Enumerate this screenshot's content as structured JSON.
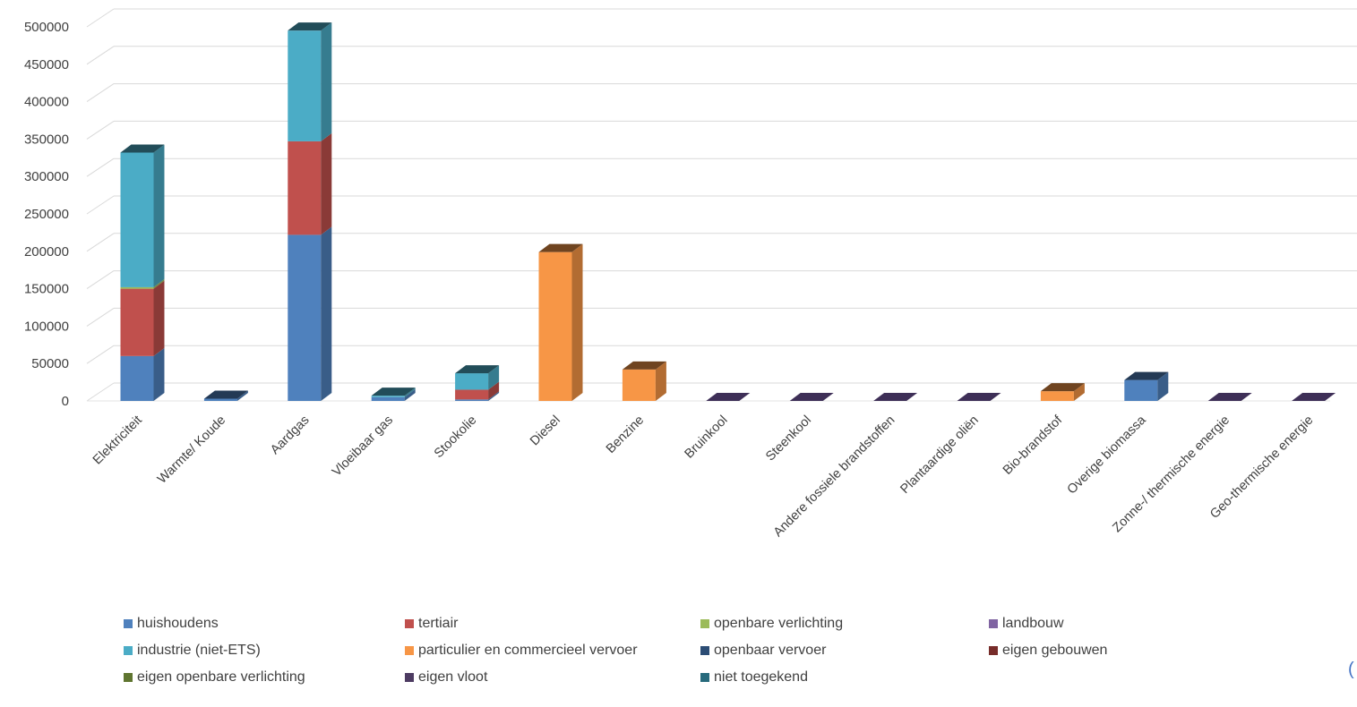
{
  "chart_data": {
    "type": "bar",
    "stacked": true,
    "style": "3d-column",
    "categories": [
      "Elektriciteit",
      "Warmte/ Koude",
      "Aardgas",
      "Vloeibaar gas",
      "Stookolie",
      "Diesel",
      "Benzine",
      "Bruinkool",
      "Steenkool",
      "Andere fossiele brandstoffen",
      "Plantaardige oliën",
      "Bio-brandstof",
      "Overige biomassa",
      "Zonne-/ thermische energie",
      "Geo-thermische energie"
    ],
    "y_ticks": [
      "0",
      "50000",
      "100000",
      "150000",
      "200000",
      "250000",
      "300000",
      "350000",
      "400000",
      "450000",
      "500000"
    ],
    "ylim": [
      0,
      520000
    ],
    "grid": true,
    "legend_position": "bottom",
    "series": [
      {
        "name": "huishoudens",
        "color": "#4F81BD",
        "values": [
          60000,
          3000,
          222000,
          5000,
          2000,
          0,
          0,
          0,
          0,
          0,
          0,
          0,
          28000,
          0,
          0
        ]
      },
      {
        "name": "tertiair",
        "color": "#C0504D",
        "values": [
          90000,
          0,
          125000,
          0,
          13000,
          0,
          0,
          0,
          0,
          0,
          0,
          0,
          0,
          0,
          0
        ]
      },
      {
        "name": "openbare verlichting",
        "color": "#9BBB59",
        "values": [
          2000,
          0,
          0,
          0,
          0,
          0,
          0,
          0,
          0,
          0,
          0,
          0,
          0,
          0,
          0
        ]
      },
      {
        "name": "landbouw",
        "color": "#8064A2",
        "values": [
          0,
          0,
          0,
          0,
          0,
          0,
          0,
          0,
          0,
          0,
          0,
          0,
          0,
          0,
          0
        ]
      },
      {
        "name": "industrie (niet-ETS)",
        "color": "#4BACC6",
        "values": [
          180000,
          0,
          148000,
          2000,
          22000,
          0,
          0,
          0,
          0,
          0,
          0,
          0,
          0,
          0,
          0
        ]
      },
      {
        "name": "particulier en commercieel vervoer",
        "color": "#F79646",
        "values": [
          0,
          0,
          0,
          0,
          0,
          199000,
          42000,
          0,
          0,
          0,
          0,
          13000,
          0,
          0,
          0
        ]
      },
      {
        "name": "openbaar vervoer",
        "color": "#2C4D75",
        "values": [
          0,
          0,
          0,
          0,
          0,
          0,
          0,
          0,
          0,
          0,
          0,
          0,
          0,
          0,
          0
        ]
      },
      {
        "name": "eigen gebouwen",
        "color": "#772C2A",
        "values": [
          0,
          0,
          0,
          0,
          0,
          0,
          0,
          0,
          0,
          0,
          0,
          0,
          0,
          0,
          0
        ]
      },
      {
        "name": "eigen openbare verlichting",
        "color": "#5F7530",
        "values": [
          0,
          0,
          0,
          0,
          0,
          0,
          0,
          0,
          0,
          0,
          0,
          0,
          0,
          0,
          0
        ]
      },
      {
        "name": "eigen vloot",
        "color": "#4D3B62",
        "values": [
          0,
          0,
          0,
          0,
          0,
          0,
          0,
          0,
          0,
          0,
          0,
          0,
          0,
          0,
          0
        ]
      },
      {
        "name": "niet toegekend",
        "color": "#276A7C",
        "values": [
          0,
          0,
          0,
          0,
          0,
          0,
          0,
          0,
          0,
          0,
          0,
          0,
          0,
          0,
          0
        ]
      }
    ]
  },
  "edge_glyph": "("
}
